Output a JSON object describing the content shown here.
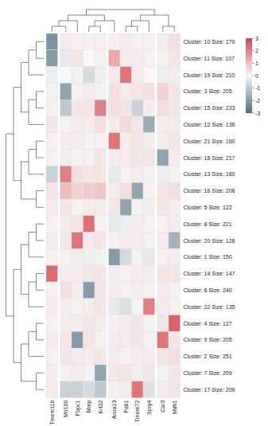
{
  "chart_data": {
    "type": "heatmap",
    "columns": [
      "Tmem11b",
      "Mir100",
      "Pbpc1",
      "Mmp",
      "Krt32",
      "Anxa13",
      "Pati1",
      "Tmem72",
      "Spry4",
      "Car3",
      "Mdh1"
    ],
    "rows": [
      "Cluster: 10 Size: 170",
      "Cluster: 11 Size: 107",
      "Cluster: 19 Size: 210",
      "Cluster: 3 Size: 205",
      "Cluster: 15 Size: 233",
      "Cluster: 12 Size: 136",
      "Cluster: 21 Size: 160",
      "Cluster: 18 Size: 217",
      "Cluster: 13 Size: 160",
      "Cluster: 16 Size: 206",
      "Cluster: 5 Size: 122",
      "Cluster: 8 Size: 221",
      "Cluster: 20 Size: 128",
      "Cluster: 1 Size: 150",
      "Cluster: 14 Size: 147",
      "Cluster: 6 Size: 240",
      "Cluster: 22 Size: 135",
      "Cluster: 4 Size: 127",
      "Cluster: 9 Size: 205",
      "Cluster: 2 Size: 251",
      "Cluster: 7 Size: 209",
      "Cluster: 17 Size: 209"
    ],
    "cells": [
      [
        -2.2,
        0.2,
        0.1,
        0.1,
        0.1,
        0.1,
        0.2,
        0.1,
        0.1,
        0.2,
        0.4
      ],
      [
        -2.0,
        -0.3,
        0.3,
        0.0,
        0.1,
        1.3,
        0.2,
        0.2,
        0.1,
        0.1,
        0.3
      ],
      [
        -0.2,
        0.0,
        -0.1,
        -0.6,
        -0.2,
        0.2,
        2.2,
        0.2,
        0.0,
        -0.2,
        0.2
      ],
      [
        -0.1,
        -1.8,
        0.1,
        0.2,
        -0.1,
        0.4,
        0.2,
        0.3,
        0.4,
        0.6,
        0.3
      ],
      [
        0.1,
        -1.0,
        0.3,
        0.3,
        2.0,
        0.4,
        0.3,
        -0.8,
        0.2,
        0.4,
        0.3
      ],
      [
        0.3,
        0.1,
        0.2,
        0.2,
        0.4,
        0.2,
        0.5,
        0.3,
        -1.6,
        0.2,
        0.2
      ],
      [
        0.1,
        0.2,
        0.2,
        -0.1,
        0.1,
        2.2,
        0.2,
        0.3,
        0.2,
        0.2,
        0.3
      ],
      [
        0.1,
        -0.2,
        0.1,
        0.1,
        0.3,
        0.2,
        0.2,
        0.3,
        0.3,
        -1.8,
        0.2
      ],
      [
        -0.8,
        2.0,
        0.4,
        0.3,
        0.3,
        -0.3,
        0.1,
        0.2,
        0.1,
        -0.2,
        0.1
      ],
      [
        0.3,
        1.0,
        0.6,
        0.7,
        0.8,
        0.2,
        0.4,
        -1.8,
        0.1,
        0.3,
        0.4
      ],
      [
        0.2,
        0.3,
        0.1,
        0.2,
        0.2,
        0.3,
        -1.8,
        0.1,
        0.2,
        0.3,
        0.2
      ],
      [
        0.1,
        0.2,
        0.3,
        2.3,
        0.1,
        -0.3,
        -0.2,
        0.2,
        0.1,
        0.1,
        0.2
      ],
      [
        0.2,
        0.3,
        2.2,
        0.2,
        0.3,
        0.1,
        0.2,
        0.2,
        0.1,
        0.2,
        -1.5
      ],
      [
        0.1,
        0.1,
        -0.2,
        -0.2,
        -0.1,
        -2.0,
        -0.6,
        0.1,
        -0.3,
        0.1,
        0.2
      ],
      [
        2.4,
        0.2,
        0.2,
        0.3,
        0.3,
        0.2,
        0.1,
        0.2,
        0.2,
        0.3,
        0.3
      ],
      [
        0.1,
        0.4,
        0.2,
        -2.0,
        0.3,
        0.2,
        0.1,
        0.2,
        0.1,
        0.2,
        0.1
      ],
      [
        0.2,
        0.2,
        0.1,
        0.2,
        0.3,
        -0.3,
        -0.5,
        -0.1,
        2.0,
        0.2,
        0.1
      ],
      [
        0.1,
        0.2,
        0.2,
        0.3,
        0.2,
        0.1,
        0.2,
        0.3,
        0.1,
        -0.3,
        2.5
      ],
      [
        0.2,
        0.3,
        -2.0,
        0.3,
        0.1,
        0.2,
        0.2,
        0.3,
        0.1,
        2.2,
        0.3
      ],
      [
        0.1,
        0.3,
        0.2,
        0.2,
        0.3,
        0.2,
        0.1,
        0.2,
        0.2,
        0.3,
        0.4
      ],
      [
        0.2,
        0.1,
        0.2,
        0.1,
        -1.8,
        0.3,
        0.3,
        0.2,
        0.3,
        -0.1,
        0.3
      ],
      [
        0.2,
        -0.8,
        -0.8,
        -0.6,
        -1.0,
        0.1,
        0.2,
        2.2,
        -0.5,
        0.2,
        0.3
      ]
    ],
    "color_range": [
      -3,
      3
    ],
    "color_ticks": [
      3,
      2,
      1,
      0,
      -1,
      -2,
      -3
    ]
  }
}
